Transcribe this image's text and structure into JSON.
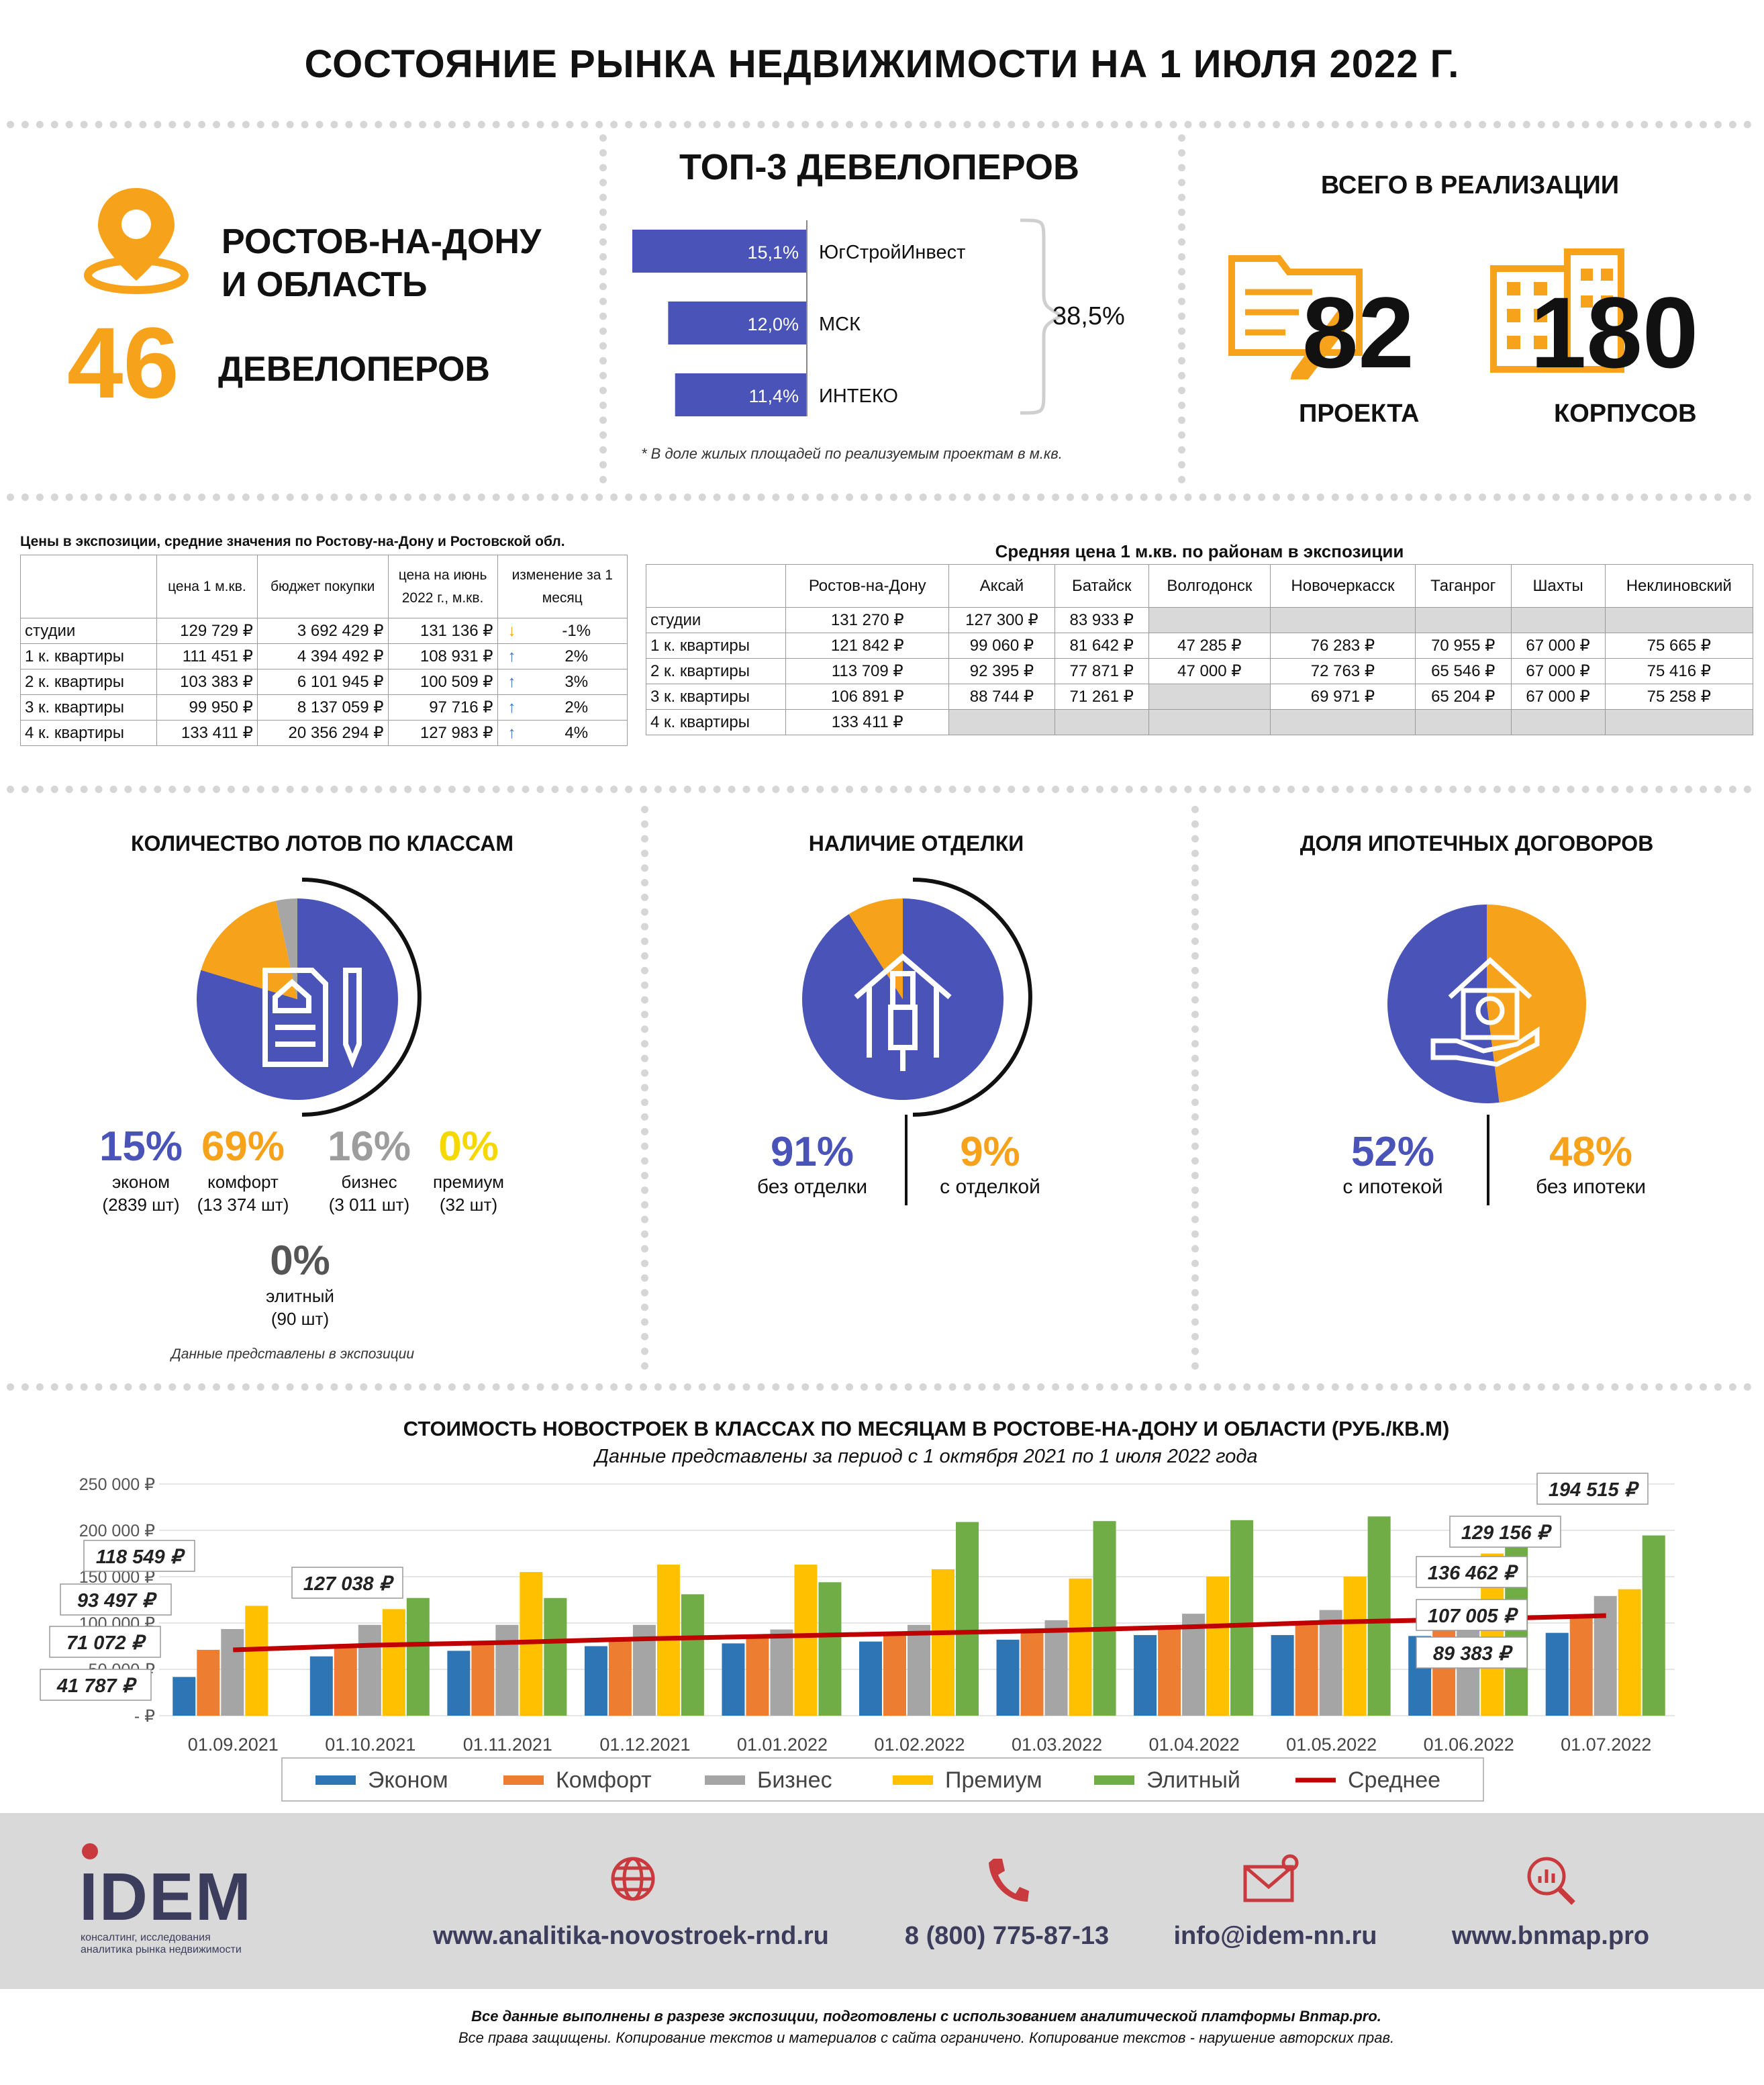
{
  "title": "СОСТОЯНИЕ РЫНКА НЕДВИЖИМОСТИ НА 1 ИЮЛЯ 2022 Г.",
  "region": {
    "line1": "РОСТОВ-НА-ДОНУ",
    "line2": "И ОБЛАСТЬ",
    "count": "46",
    "count_label": "ДЕВЕЛОПЕРОВ"
  },
  "top3": {
    "title": "ТОП-3 ДЕВЕЛОПЕРОВ",
    "items": [
      {
        "pct": "15,1%",
        "name": "ЮгСтройИнвест",
        "value": 15.1
      },
      {
        "pct": "12,0%",
        "name": "МСК",
        "value": 12.0
      },
      {
        "pct": "11,4%",
        "name": "ИНТЕКО",
        "value": 11.4
      }
    ],
    "total": "38,5%",
    "note": "* В доле жилых площадей по реализуемым проектам в м.кв."
  },
  "realization": {
    "title": "ВСЕГО В РЕАЛИЗАЦИИ",
    "projects": "82",
    "projects_label": "ПРОЕКТА",
    "buildings": "180",
    "buildings_label": "КОРПУСОВ"
  },
  "price_table": {
    "title": "Цены в экспозиции, средние значения по Ростову-на-Дону и Ростовской обл.",
    "headers": [
      "",
      "цена 1 м.кв.",
      "бюджет покупки",
      "цена на июнь 2022 г., м.кв.",
      "изменение за 1 месяц"
    ],
    "rows": [
      {
        "name": "студии",
        "price": "129 729 ₽",
        "budget": "3 692 429 ₽",
        "june": "131 136 ₽",
        "arrow": "down",
        "change": "-1%"
      },
      {
        "name": "1 к. квартиры",
        "price": "111 451 ₽",
        "budget": "4 394 492 ₽",
        "june": "108 931 ₽",
        "arrow": "up",
        "change": "2%"
      },
      {
        "name": "2 к. квартиры",
        "price": "103 383 ₽",
        "budget": "6 101 945 ₽",
        "june": "100 509 ₽",
        "arrow": "up",
        "change": "3%"
      },
      {
        "name": "3 к. квартиры",
        "price": "99 950 ₽",
        "budget": "8 137 059 ₽",
        "june": "97 716 ₽",
        "arrow": "up",
        "change": "2%"
      },
      {
        "name": "4 к. квартиры",
        "price": "133 411 ₽",
        "budget": "20 356 294 ₽",
        "june": "127 983 ₽",
        "arrow": "up",
        "change": "4%"
      }
    ]
  },
  "district_table": {
    "title": "Средняя цена 1 м.кв. по районам  в экспозиции",
    "headers": [
      "",
      "Ростов-на-Дону",
      "Аксай",
      "Батайск",
      "Волгодонск",
      "Новочеркасск",
      "Таганрог",
      "Шахты",
      "Неклиновский"
    ],
    "rows": [
      {
        "name": "студии",
        "cells": [
          "131 270 ₽",
          "127 300 ₽",
          "83 933 ₽",
          "",
          "",
          "",
          "",
          ""
        ]
      },
      {
        "name": "1 к. квартиры",
        "cells": [
          "121 842 ₽",
          "99 060 ₽",
          "81 642 ₽",
          "47 285 ₽",
          "76 283 ₽",
          "70 955 ₽",
          "67 000 ₽",
          "75 665 ₽"
        ]
      },
      {
        "name": "2 к. квартиры",
        "cells": [
          "113 709 ₽",
          "92 395 ₽",
          "77 871 ₽",
          "47 000 ₽",
          "72 763 ₽",
          "65 546 ₽",
          "67 000 ₽",
          "75 416 ₽"
        ]
      },
      {
        "name": "3 к. квартиры",
        "cells": [
          "106 891 ₽",
          "88 744 ₽",
          "71 261 ₽",
          "",
          "69 971 ₽",
          "65 204 ₽",
          "67 000 ₽",
          "75 258 ₽"
        ]
      },
      {
        "name": "4 к. квартиры",
        "cells": [
          "133 411 ₽",
          "",
          "",
          "",
          "",
          "",
          "",
          ""
        ]
      }
    ]
  },
  "lots": {
    "title": "КОЛИЧЕСТВО ЛОТОВ ПО КЛАССАМ",
    "segments": [
      {
        "pct": "15%",
        "label": "эконом",
        "count": "(2839 шт)",
        "value": 2839
      },
      {
        "pct": "69%",
        "label": "комфорт",
        "count": "(13 374 шт)",
        "value": 13374
      },
      {
        "pct": "16%",
        "label": "бизнес",
        "count": "(3 011 шт)",
        "value": 3011
      },
      {
        "pct": "0%",
        "label": "премиум",
        "count": "(32 шт)",
        "value": 32
      },
      {
        "pct": "0%",
        "label": "элитный",
        "count": "(90 шт)",
        "value": 90
      }
    ],
    "note": "Данные представлены в экспозиции"
  },
  "finish": {
    "title": "НАЛИЧИЕ ОТДЕЛКИ",
    "a_pct": "91%",
    "a_label": "без отделки",
    "b_pct": "9%",
    "b_label": "с отделкой",
    "a_value": 91,
    "b_value": 9
  },
  "mortgage": {
    "title": "ДОЛЯ ИПОТЕЧНЫХ ДОГОВОРОВ",
    "a_pct": "52%",
    "a_label": "с ипотекой",
    "b_pct": "48%",
    "b_label": "без ипотеки",
    "a_value": 52,
    "b_value": 48
  },
  "colors": {
    "blue": "#4a54b8",
    "orange": "#f7a21b",
    "gray": "#a6a6a6",
    "yellow": "#ffc000",
    "econom": "#2e75b6",
    "comfort": "#ed7d31",
    "business": "#a5a5a5",
    "premium": "#ffc000",
    "elite": "#70ad47",
    "avg": "#c00000"
  },
  "chart_data": {
    "type": "bar",
    "title": "СТОИМОСТЬ  НОВОСТРОЕК В КЛАССАХ ПО МЕСЯЦАМ В РОСТОВЕ-НА-ДОНУ И ОБЛАСТИ (РУБ./КВ.М)",
    "subtitle": "Данные представлены за период с 1 октября 2021 по 1 июля 2022 года",
    "categories": [
      "01.09.2021",
      "01.10.2021",
      "01.11.2021",
      "01.12.2021",
      "01.01.2022",
      "01.02.2022",
      "01.03.2022",
      "01.04.2022",
      "01.05.2022",
      "01.06.2022",
      "01.07.2022"
    ],
    "series": [
      {
        "name": "Эконом",
        "values": [
          41787,
          64000,
          70000,
          75000,
          78000,
          80000,
          82000,
          87000,
          87000,
          86000,
          89383
        ]
      },
      {
        "name": "Комфорт",
        "values": [
          71072,
          76000,
          79000,
          82000,
          85000,
          87000,
          90000,
          95000,
          101000,
          103000,
          107005
        ]
      },
      {
        "name": "Бизнес",
        "values": [
          93497,
          98000,
          98000,
          98000,
          93000,
          98000,
          103000,
          110000,
          114000,
          122000,
          129156
        ]
      },
      {
        "name": "Премиум",
        "values": [
          118549,
          115000,
          155000,
          163000,
          163000,
          158000,
          148000,
          150000,
          150000,
          175000,
          136462
        ]
      },
      {
        "name": "Элитный",
        "values": [
          0,
          127038,
          127000,
          131000,
          144000,
          209000,
          210000,
          211000,
          215000,
          193000,
          194515
        ]
      }
    ],
    "line": {
      "name": "Среднее",
      "values": [
        71000,
        76000,
        79000,
        83000,
        86000,
        89000,
        92000,
        96000,
        101000,
        104000,
        108000
      ]
    },
    "labels": [
      "118 549 ₽",
      "93 497 ₽",
      "71 072 ₽",
      "41 787 ₽",
      "127 038 ₽",
      "194 515 ₽",
      "129 156 ₽",
      "136 462 ₽",
      "107 005 ₽",
      "89 383 ₽"
    ],
    "yticks": [
      "250 000 ₽",
      "200 000 ₽",
      "150 000 ₽",
      "100 000 ₽",
      "50 000 ₽",
      "- ₽"
    ],
    "ylim": [
      0,
      250000
    ]
  },
  "footer": {
    "brand": "IDEM",
    "tagline1": "консалтинг, исследования",
    "tagline2": "аналитика рынка недвижимости",
    "site": "www.analitika-novostroek-rnd.ru",
    "phone": "8 (800) 775-87-13",
    "email": "info@idem-nn.ru",
    "bnmap": "www.bnmap.pro"
  },
  "disclaimer": {
    "line1": "Все данные выполнены в разрезе экспозиции, подготовлены с использованием аналитической платформы Bnmap.pro.",
    "line2": "Все права защищены. Копирование текстов и материалов с сайта ограничено. Копирование текстов - нарушение авторских прав."
  }
}
